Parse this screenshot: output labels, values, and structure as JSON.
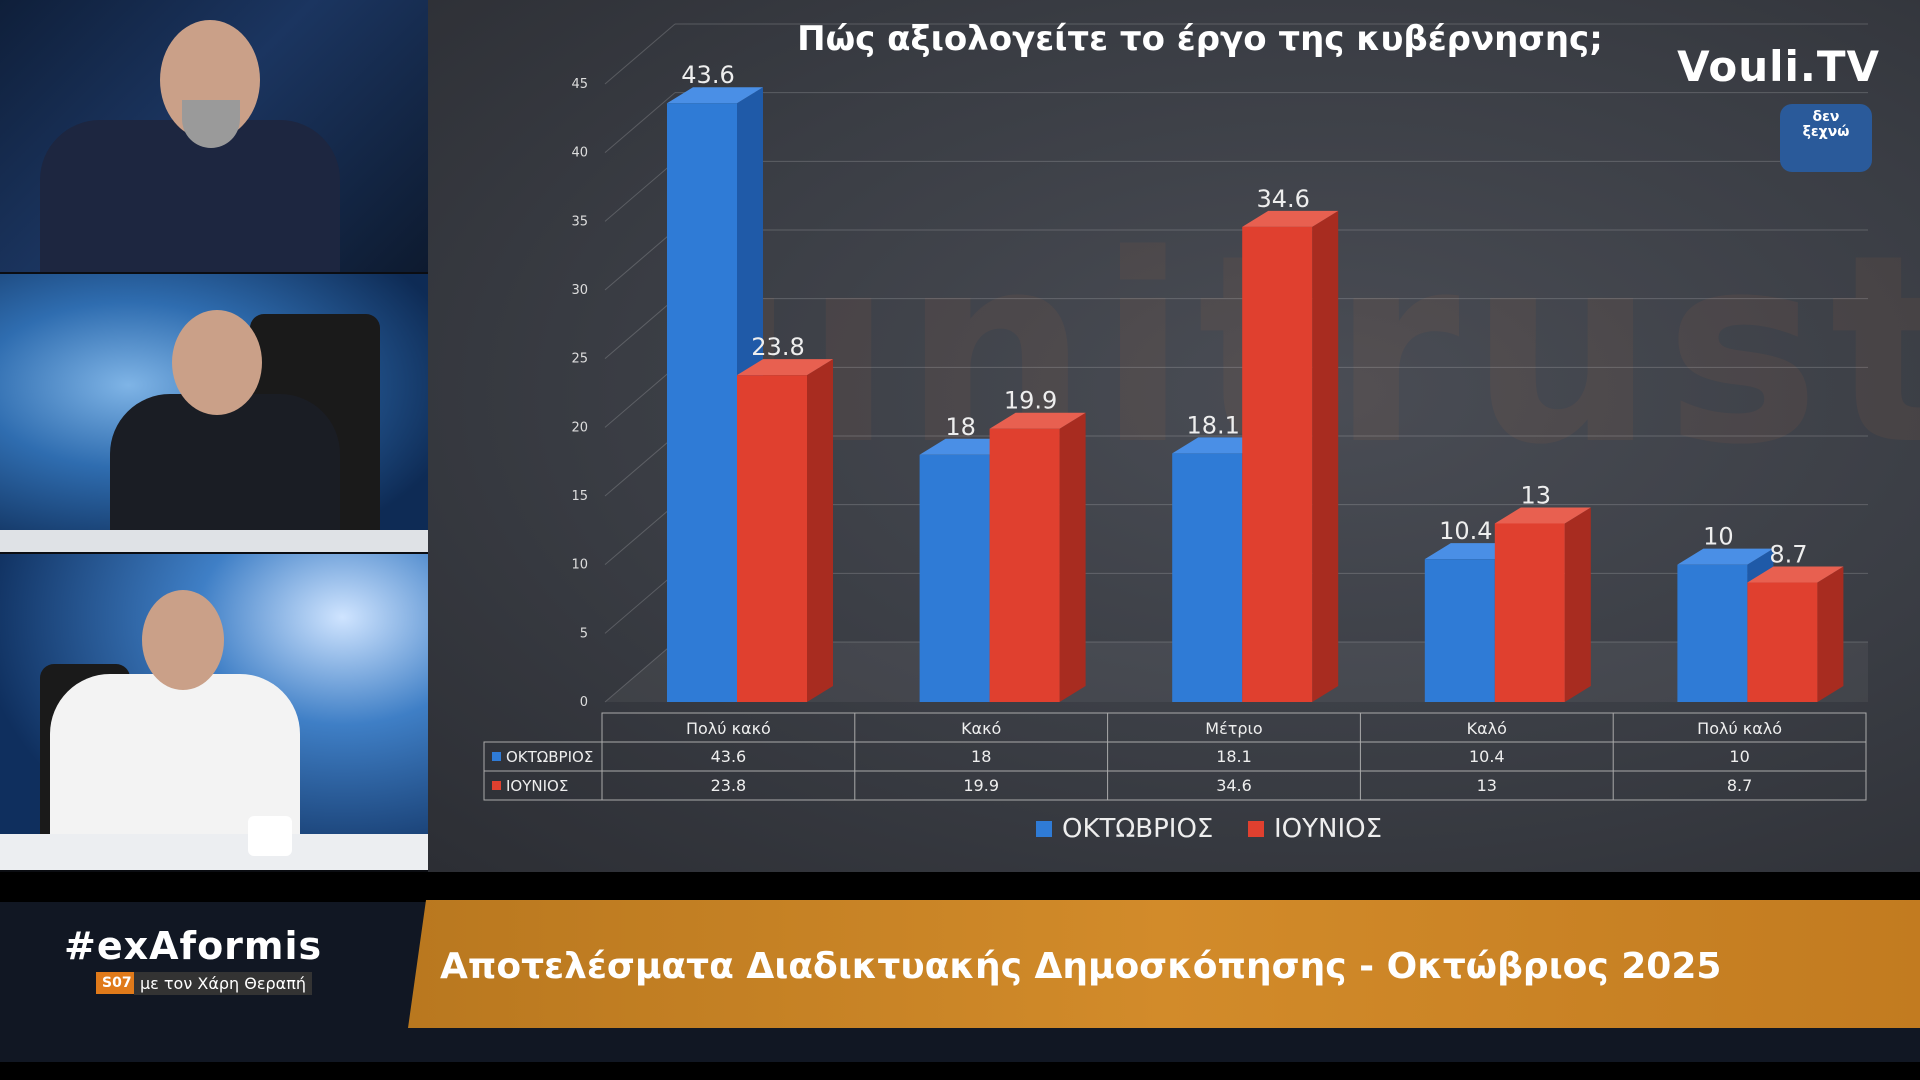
{
  "channel": {
    "logo_text": "Vouli.TV",
    "badge_line1": "δεν",
    "badge_line2": "ξεχνώ"
  },
  "watermark": "unitrust",
  "lower_third": {
    "caption": "Αποτελέσματα Διαδικτυακής Δημοσκόπησης - Οκτώβριος 2025",
    "show_hash": "#exAformis",
    "season": "S07",
    "host": "με τον Χάρη Θεραπή"
  },
  "chart_data": {
    "type": "bar",
    "title": "Πώς αξιολογείτε το έργο της κυβέρνησης;",
    "categories": [
      "Πολύ κακό",
      "Κακό",
      "Μέτριο",
      "Καλό",
      "Πολύ καλό"
    ],
    "series": [
      {
        "name": "ΟΚΤΩΒΡΙΟΣ",
        "values": [
          43.6,
          18,
          18.1,
          10.4,
          10
        ],
        "color": "#2f7bd6"
      },
      {
        "name": "ΙΟΥΝΙΟΣ",
        "values": [
          23.8,
          19.9,
          34.6,
          13,
          8.7
        ],
        "color": "#e0402f"
      }
    ],
    "ylim": [
      0,
      45
    ],
    "yticks": [
      0,
      5,
      10,
      15,
      20,
      25,
      30,
      35,
      40,
      45
    ],
    "grid": true,
    "legend": "bottom",
    "data_table": true
  }
}
